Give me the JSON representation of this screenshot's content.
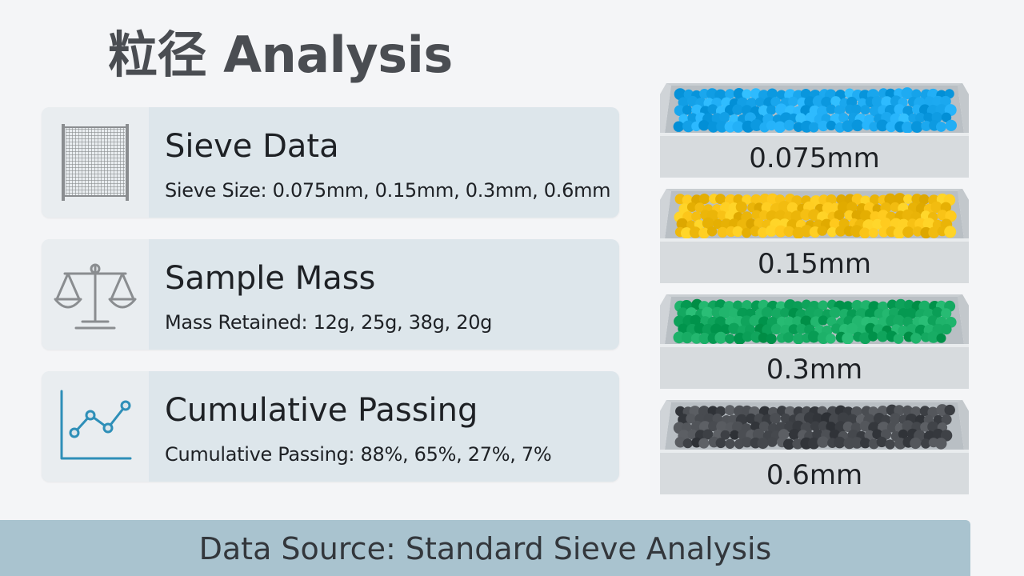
{
  "title": "粒径 Analysis",
  "cards": [
    {
      "icon": "sieve-mesh-icon",
      "title": "Sieve Data",
      "detail": "Sieve Size: 0.075mm, 0.15mm, 0.3mm, 0.6mm"
    },
    {
      "icon": "balance-scale-icon",
      "title": "Sample Mass",
      "detail": "Mass Retained: 12g, 25g, 38g, 20g"
    },
    {
      "icon": "line-chart-icon",
      "title": "Cumulative Passing",
      "detail": "Cumulative Passing: 88%, 65%, 27%, 7%"
    }
  ],
  "trays": [
    {
      "label": "0.075mm",
      "color": "#1aa7ee"
    },
    {
      "label": "0.15mm",
      "color": "#f4be12"
    },
    {
      "label": "0.3mm",
      "color": "#12a65e"
    },
    {
      "label": "0.6mm",
      "color": "#45484d"
    }
  ],
  "footer": {
    "text": "Data Source: Standard Sieve Analysis"
  },
  "colors": {
    "accent_blue": "#2e8fb8",
    "icon_gray": "#8a8d90",
    "card_bg": "#dde6eb",
    "footer_bg": "#a9c3cf"
  }
}
